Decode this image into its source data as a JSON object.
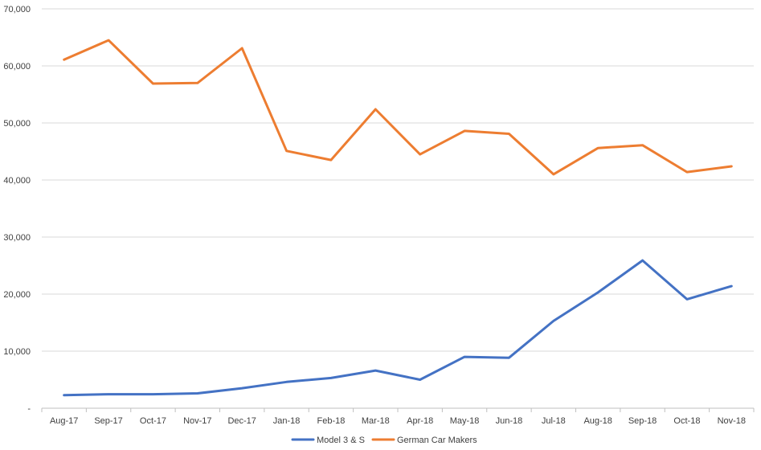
{
  "chart_data": {
    "type": "line",
    "categories": [
      "Aug-17",
      "Sep-17",
      "Oct-17",
      "Nov-17",
      "Dec-17",
      "Jan-18",
      "Feb-18",
      "Mar-18",
      "Apr-18",
      "May-18",
      "Jun-18",
      "Jul-18",
      "Aug-18",
      "Sep-18",
      "Oct-18",
      "Nov-18"
    ],
    "series": [
      {
        "name": "Model 3 & S",
        "color": "#4472C4",
        "values": [
          2300,
          2450,
          2450,
          2600,
          3500,
          4600,
          5300,
          6600,
          5000,
          9000,
          8850,
          15300,
          20300,
          25900,
          19100,
          21400
        ]
      },
      {
        "name": "German Car Makers",
        "color": "#ED7D31",
        "values": [
          61100,
          64500,
          56900,
          57000,
          63100,
          45100,
          43500,
          52400,
          44500,
          48600,
          48100,
          41000,
          45600,
          46100,
          41400,
          42400
        ]
      }
    ],
    "y_ticks": [
      "-",
      "10,000",
      "20,000",
      "30,000",
      "40,000",
      "50,000",
      "60,000",
      "70,000"
    ],
    "ylim": [
      0,
      70000
    ],
    "grid": true,
    "legend_position": "bottom"
  }
}
